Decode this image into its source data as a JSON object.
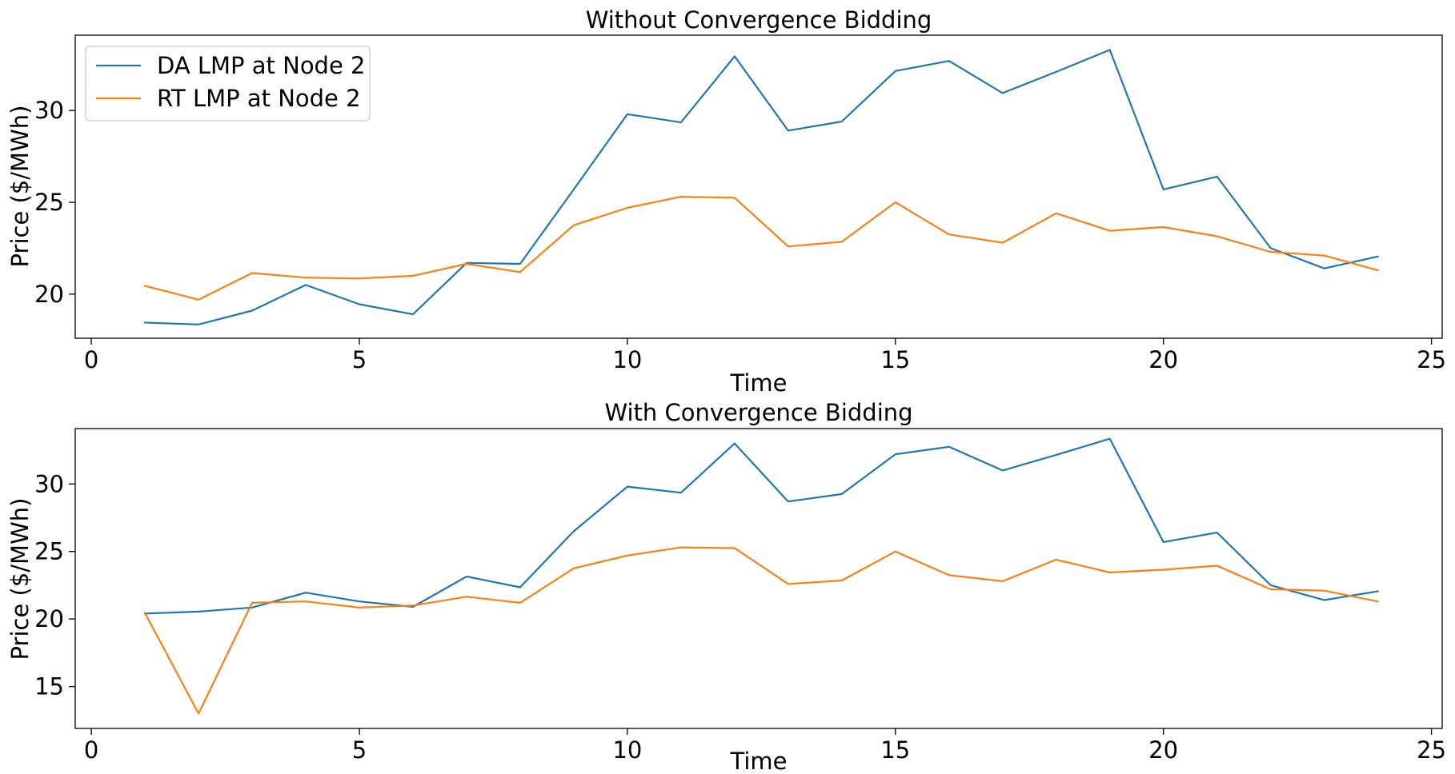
{
  "chart_data": [
    {
      "type": "line",
      "title": "Without Convergence Bidding",
      "xlabel": "Time",
      "ylabel": "Price ($/MWh)",
      "xlim": [
        -0.3,
        25.2
      ],
      "ylim": [
        17.6,
        34.1
      ],
      "xticks": [
        0,
        5,
        10,
        15,
        20,
        25
      ],
      "yticks": [
        20,
        25,
        30
      ],
      "grid": false,
      "legend": "upper-left",
      "x": [
        1,
        2,
        3,
        4,
        5,
        6,
        7,
        8,
        9,
        10,
        11,
        12,
        13,
        14,
        15,
        16,
        17,
        18,
        19,
        20,
        21,
        22,
        23,
        24
      ],
      "series": [
        {
          "name": "DA LMP at Node 2",
          "color": "#1f77b4",
          "values": [
            18.45,
            18.35,
            19.1,
            20.5,
            19.45,
            18.9,
            21.7,
            21.65,
            25.7,
            29.8,
            29.35,
            32.95,
            28.9,
            29.4,
            32.15,
            32.7,
            30.95,
            32.1,
            33.3,
            25.7,
            26.4,
            22.5,
            21.4,
            22.05
          ]
        },
        {
          "name": "RT LMP at Node 2",
          "color": "#ff7f0e",
          "values": [
            20.45,
            19.7,
            21.15,
            20.9,
            20.85,
            21.0,
            21.65,
            21.2,
            23.75,
            24.7,
            25.3,
            25.25,
            22.6,
            22.85,
            25.0,
            23.25,
            22.8,
            24.4,
            23.45,
            23.65,
            23.15,
            22.3,
            22.1,
            21.3
          ]
        }
      ]
    },
    {
      "type": "line",
      "title": "With Convergence Bidding",
      "xlabel": "Time",
      "ylabel": "Price ($/MWh)",
      "xlim": [
        -0.3,
        25.2
      ],
      "ylim": [
        11.9,
        34.1
      ],
      "xticks": [
        0,
        5,
        10,
        15,
        20,
        25
      ],
      "yticks": [
        15,
        20,
        25,
        30
      ],
      "grid": false,
      "x": [
        1,
        2,
        3,
        4,
        5,
        6,
        7,
        8,
        9,
        10,
        11,
        12,
        13,
        14,
        15,
        16,
        17,
        18,
        19,
        20,
        21,
        22,
        23,
        24
      ],
      "series": [
        {
          "name": "DA LMP at Node 2",
          "color": "#1f77b4",
          "values": [
            20.4,
            20.55,
            20.85,
            21.95,
            21.3,
            20.9,
            23.15,
            22.35,
            26.5,
            29.8,
            29.35,
            33.0,
            28.7,
            29.25,
            32.2,
            32.75,
            31.0,
            32.15,
            33.35,
            25.7,
            26.4,
            22.5,
            21.4,
            22.05
          ]
        },
        {
          "name": "RT LMP at Node 2",
          "color": "#ff7f0e",
          "values": [
            20.45,
            13.0,
            21.2,
            21.3,
            20.85,
            21.0,
            21.65,
            21.2,
            23.75,
            24.7,
            25.3,
            25.25,
            22.6,
            22.85,
            25.0,
            23.25,
            22.8,
            24.4,
            23.45,
            23.65,
            23.95,
            22.2,
            22.1,
            21.3
          ]
        }
      ]
    }
  ]
}
